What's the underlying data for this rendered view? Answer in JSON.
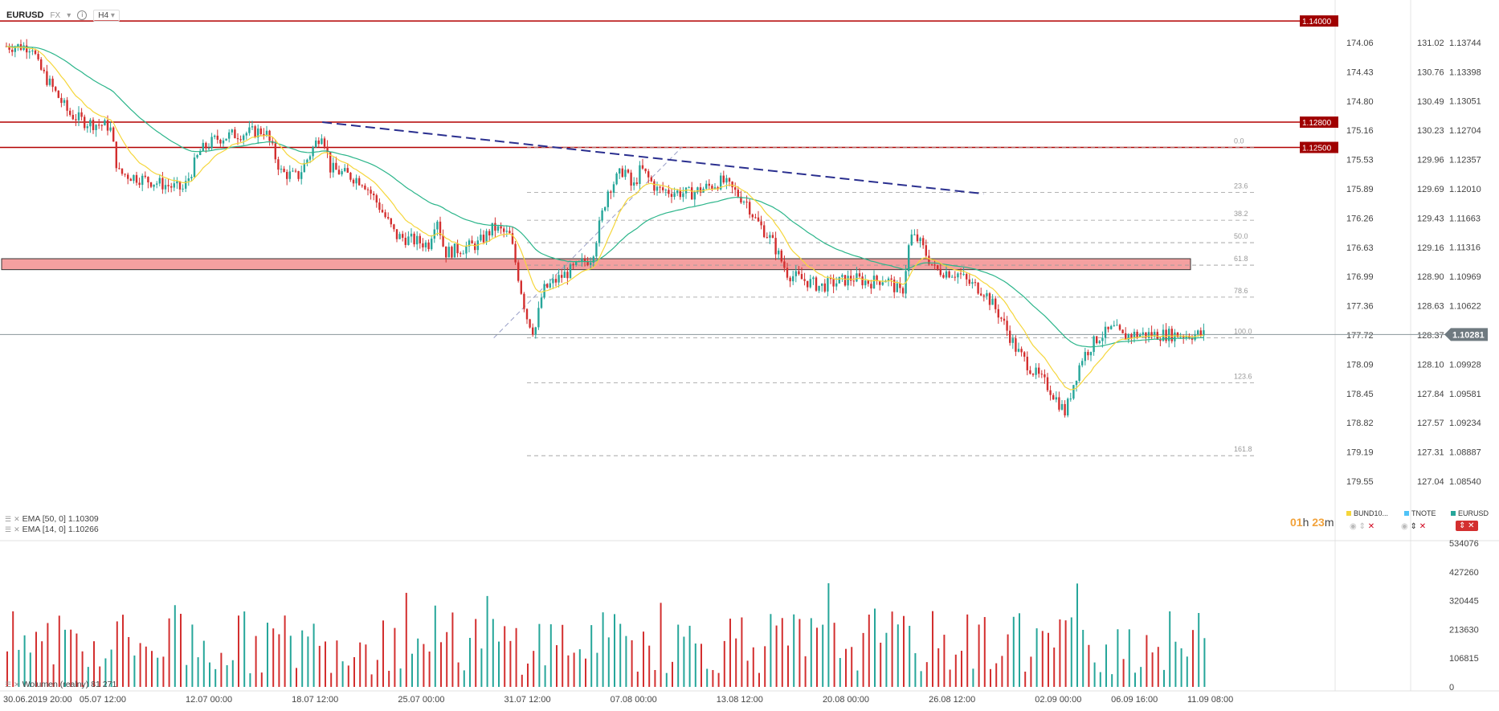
{
  "header": {
    "symbol": "EURUSD",
    "market": "FX",
    "timeframe": "H4"
  },
  "colors": {
    "up": "#26a69a",
    "down": "#d32f2f",
    "ema50": "#2bb58a",
    "ema14": "#f5d63b",
    "resistance": "#b30000",
    "trend": "#2a2f8f",
    "zone": "#f4a0a0"
  },
  "indicators": {
    "ema50": "EMA [50, 0] 1.10309",
    "ema14": "EMA [14, 0] 1.10266",
    "volume": "Wolumen (realny) 81 271"
  },
  "timer": {
    "h": "01",
    "h_unit": "h",
    "m": "23",
    "m_unit": "m"
  },
  "symbols_legend": [
    {
      "name": "BUND10...",
      "color": "#f5d63b"
    },
    {
      "name": "TNOTE",
      "color": "#4fc3f7"
    },
    {
      "name": "EURUSD",
      "color": "#26a69a"
    }
  ],
  "chart_data": {
    "type": "candlestick",
    "x_ticks": [
      "30.06.2019 20:00",
      "05.07 12:00",
      "12.07 00:00",
      "18.07 12:00",
      "25.07 00:00",
      "31.07 12:00",
      "07.08 00:00",
      "13.08 12:00",
      "20.08 00:00",
      "26.08 12:00",
      "02.09 00:00",
      "06.09 16:00",
      "11.09 08:00"
    ],
    "price_ticks": [
      "1.13744",
      "1.13398",
      "1.13051",
      "1.12704",
      "1.12357",
      "1.12010",
      "1.11663",
      "1.11316",
      "1.10969",
      "1.10622",
      "1.10281",
      "1.09928",
      "1.09581",
      "1.09234",
      "1.08887",
      "1.08540"
    ],
    "bund_ticks": [
      "174.06",
      "174.43",
      "174.80",
      "175.16",
      "175.53",
      "175.89",
      "176.26",
      "176.63",
      "176.99",
      "177.36",
      "177.72",
      "178.09",
      "178.45",
      "178.82",
      "179.19",
      "179.55"
    ],
    "tnote_ticks": [
      "131.02",
      "130.76",
      "130.49",
      "130.23",
      "129.96",
      "129.69",
      "129.43",
      "129.16",
      "128.90",
      "128.63",
      "128.37",
      "128.10",
      "127.84",
      "127.57",
      "127.31",
      "127.04"
    ],
    "volume_ticks": [
      "534076",
      "427260",
      "320445",
      "213630",
      "106815",
      "0"
    ],
    "horizontal_levels": [
      {
        "price": 1.14,
        "label": "1.14000"
      },
      {
        "price": 1.128,
        "label": "1.12800"
      },
      {
        "price": 1.125,
        "label": "1.12500"
      }
    ],
    "current_price": {
      "price": 1.10281,
      "label": "1.10281"
    },
    "zone": {
      "from": 1.1105,
      "to": 1.1118
    },
    "fibonacci": {
      "high": 1.125,
      "low": 1.1024,
      "levels": [
        {
          "ratio": 0.0,
          "label": "0.0"
        },
        {
          "ratio": 0.236,
          "label": "23.6"
        },
        {
          "ratio": 0.382,
          "label": "38.2"
        },
        {
          "ratio": 0.5,
          "label": "50.0"
        },
        {
          "ratio": 0.618,
          "label": "61.8"
        },
        {
          "ratio": 0.786,
          "label": "78.6"
        },
        {
          "ratio": 1.0,
          "label": "100.0"
        },
        {
          "ratio": 1.236,
          "label": "123.6"
        },
        {
          "ratio": 1.618,
          "label": "161.8"
        }
      ]
    },
    "trendline": [
      {
        "t": "18.07 12:00",
        "price": 1.128
      },
      {
        "t": "28.08 00:00",
        "price": 1.1195
      }
    ],
    "fib_diagonal": [
      {
        "t": "29.07 00:00",
        "price": 1.1024
      },
      {
        "t": "09.08 12:00",
        "price": 1.125
      }
    ],
    "price_path": [
      {
        "t": "30.06.2019 20:00",
        "price": 1.137
      },
      {
        "t": "01.07",
        "price": 1.135
      },
      {
        "t": "03.07",
        "price": 1.129
      },
      {
        "t": "04.07",
        "price": 1.128
      },
      {
        "t": "05.07 12:00",
        "price": 1.1275
      },
      {
        "t": "06.07",
        "price": 1.122
      },
      {
        "t": "08.07",
        "price": 1.121
      },
      {
        "t": "10.07",
        "price": 1.12
      },
      {
        "t": "11.07",
        "price": 1.1245
      },
      {
        "t": "12.07 00:00",
        "price": 1.126
      },
      {
        "t": "13.07",
        "price": 1.1265
      },
      {
        "t": "15.07",
        "price": 1.127
      },
      {
        "t": "16.07",
        "price": 1.122
      },
      {
        "t": "17.07",
        "price": 1.1215
      },
      {
        "t": "18.07 12:00",
        "price": 1.127
      },
      {
        "t": "19.07",
        "price": 1.1225
      },
      {
        "t": "21.07",
        "price": 1.121
      },
      {
        "t": "22.07",
        "price": 1.118
      },
      {
        "t": "23.07",
        "price": 1.1145
      },
      {
        "t": "25.07 00:00",
        "price": 1.1135
      },
      {
        "t": "25.07 12:00",
        "price": 1.117
      },
      {
        "t": "26.07",
        "price": 1.1125
      },
      {
        "t": "28.07",
        "price": 1.1135
      },
      {
        "t": "29.07",
        "price": 1.1155
      },
      {
        "t": "30.07",
        "price": 1.1145
      },
      {
        "t": "31.07 00:00",
        "price": 1.105
      },
      {
        "t": "31.07 12:00",
        "price": 1.103
      },
      {
        "t": "01.08",
        "price": 1.108
      },
      {
        "t": "02.08",
        "price": 1.1095
      },
      {
        "t": "04.08",
        "price": 1.112
      },
      {
        "t": "05.08",
        "price": 1.12
      },
      {
        "t": "06.08",
        "price": 1.1225
      },
      {
        "t": "06.08 12:00",
        "price": 1.12
      },
      {
        "t": "07.08 00:00",
        "price": 1.1225
      },
      {
        "t": "08.08",
        "price": 1.12
      },
      {
        "t": "10.08",
        "price": 1.1195
      },
      {
        "t": "12.08",
        "price": 1.121
      },
      {
        "t": "13.08 12:00",
        "price": 1.1185
      },
      {
        "t": "14.08",
        "price": 1.1165
      },
      {
        "t": "15.08",
        "price": 1.114
      },
      {
        "t": "16.08",
        "price": 1.11
      },
      {
        "t": "18.08",
        "price": 1.1085
      },
      {
        "t": "20.08 00:00",
        "price": 1.1095
      },
      {
        "t": "21.08",
        "price": 1.109
      },
      {
        "t": "22.08",
        "price": 1.1095
      },
      {
        "t": "23.08",
        "price": 1.1075
      },
      {
        "t": "23.08 12:00",
        "price": 1.1145
      },
      {
        "t": "24.08",
        "price": 1.114
      },
      {
        "t": "25.08",
        "price": 1.1105
      },
      {
        "t": "26.08 12:00",
        "price": 1.11
      },
      {
        "t": "27.08",
        "price": 1.109
      },
      {
        "t": "28.08",
        "price": 1.108
      },
      {
        "t": "29.08",
        "price": 1.105
      },
      {
        "t": "30.08",
        "price": 1.101
      },
      {
        "t": "31.08",
        "price": 1.0985
      },
      {
        "t": "01.09",
        "price": 1.0965
      },
      {
        "t": "02.09 00:00",
        "price": 1.0935
      },
      {
        "t": "02.09 12:00",
        "price": 1.097
      },
      {
        "t": "03.09",
        "price": 1.1
      },
      {
        "t": "04.09",
        "price": 1.1025
      },
      {
        "t": "05.09",
        "price": 1.1035
      },
      {
        "t": "05.09 12:00",
        "price": 1.1025
      },
      {
        "t": "06.09",
        "price": 1.1028
      }
    ]
  }
}
